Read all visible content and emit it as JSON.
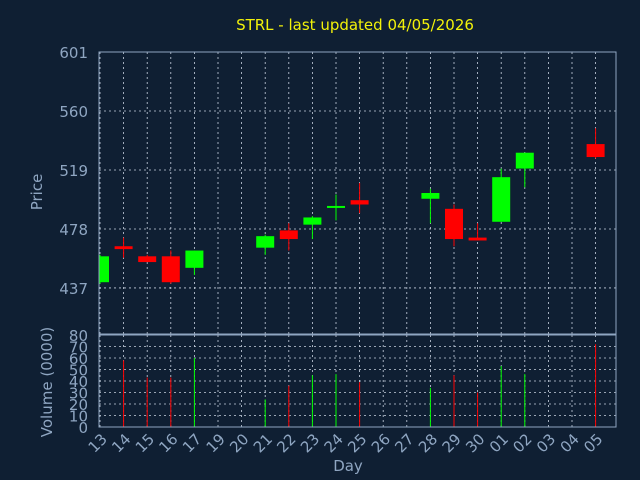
{
  "chart_data": [
    {
      "type": "candlestick",
      "title": "STRL - last updated 04/05/2026",
      "ylabel": "Price",
      "ylim": [
        405,
        601
      ],
      "yticks": [
        437,
        478,
        519,
        560,
        601
      ],
      "colors": {
        "up": "#00ff00",
        "down": "#ff0000"
      },
      "grid": true,
      "candles": [
        {
          "slot": 0,
          "open": 441,
          "close": 459,
          "high": 460,
          "low": 440
        },
        {
          "slot": 1,
          "open": 466,
          "close": 464,
          "high": 472,
          "low": 458
        },
        {
          "slot": 2,
          "open": 459,
          "close": 455,
          "high": 460,
          "low": 455
        },
        {
          "slot": 3,
          "open": 459,
          "close": 441,
          "high": 463,
          "low": 440
        },
        {
          "slot": 4,
          "open": 451,
          "close": 463,
          "high": 463,
          "low": 446
        },
        {
          "slot": 7,
          "open": 465,
          "close": 473,
          "high": 474,
          "low": 460
        },
        {
          "slot": 8,
          "open": 477,
          "close": 471,
          "high": 482,
          "low": 463
        },
        {
          "slot": 9,
          "open": 481,
          "close": 486,
          "high": 487,
          "low": 471
        },
        {
          "slot": 10,
          "open": 493,
          "close": 494,
          "high": 502,
          "low": 484
        },
        {
          "slot": 11,
          "open": 498,
          "close": 495,
          "high": 510,
          "low": 489
        },
        {
          "slot": 14,
          "open": 499,
          "close": 503,
          "high": 506,
          "low": 482
        },
        {
          "slot": 15,
          "open": 492,
          "close": 471,
          "high": 495,
          "low": 466
        },
        {
          "slot": 16,
          "open": 472,
          "close": 470,
          "high": 482,
          "low": 470
        },
        {
          "slot": 17,
          "open": 483,
          "close": 514,
          "high": 520,
          "low": 483
        },
        {
          "slot": 18,
          "open": 520,
          "close": 531,
          "high": 531,
          "low": 507
        },
        {
          "slot": 21,
          "open": 537,
          "close": 528,
          "high": 548,
          "low": 527
        }
      ]
    },
    {
      "type": "bar",
      "ylabel": "Volume (0000)",
      "xlabel": "Day",
      "ylim": [
        0,
        80
      ],
      "yticks": [
        0,
        10,
        20,
        30,
        40,
        50,
        60,
        70,
        80
      ],
      "categories": [
        "13",
        "14",
        "15",
        "16",
        "17",
        "19",
        "20",
        "21",
        "22",
        "23",
        "24",
        "25",
        "26",
        "27",
        "28",
        "29",
        "30",
        "01",
        "02",
        "03",
        "04",
        "05"
      ],
      "volumes": [
        {
          "slot": 1,
          "value": 58,
          "dir": "down"
        },
        {
          "slot": 2,
          "value": 43,
          "dir": "down"
        },
        {
          "slot": 3,
          "value": 43,
          "dir": "down"
        },
        {
          "slot": 4,
          "value": 60,
          "dir": "up"
        },
        {
          "slot": 7,
          "value": 24,
          "dir": "up"
        },
        {
          "slot": 8,
          "value": 36,
          "dir": "down"
        },
        {
          "slot": 9,
          "value": 45,
          "dir": "up"
        },
        {
          "slot": 10,
          "value": 46,
          "dir": "up"
        },
        {
          "slot": 11,
          "value": 39,
          "dir": "down"
        },
        {
          "slot": 14,
          "value": 34,
          "dir": "up"
        },
        {
          "slot": 15,
          "value": 45,
          "dir": "down"
        },
        {
          "slot": 16,
          "value": 30,
          "dir": "down"
        },
        {
          "slot": 17,
          "value": 53,
          "dir": "up"
        },
        {
          "slot": 18,
          "value": 46,
          "dir": "up"
        },
        {
          "slot": 21,
          "value": 72,
          "dir": "down"
        }
      ]
    }
  ]
}
